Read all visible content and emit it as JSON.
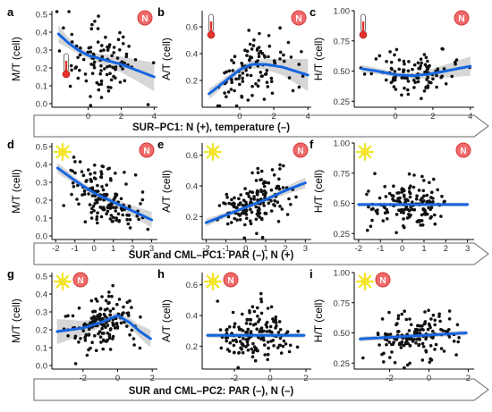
{
  "chart_data": {
    "type": "scatter",
    "rows": [
      {
        "banner": "SUR–PC1: N (+), temperature (–)",
        "panels": [
          {
            "letter": "a",
            "ylabel": "M/T (cell)",
            "icons": [
              "N-badge",
              "thermometer"
            ],
            "xlim": [
              -2.2,
              4.2
            ],
            "ylim": [
              -0.02,
              0.52
            ],
            "xticks": [
              {
                "v": 0,
                "t": "0"
              },
              {
                "v": 2,
                "t": "2"
              },
              {
                "v": 4,
                "t": "4"
              }
            ],
            "yticks": [
              {
                "v": 0.0,
                "t": "0.0"
              },
              {
                "v": 0.1,
                "t": "0.1"
              },
              {
                "v": 0.2,
                "t": "0.2"
              },
              {
                "v": 0.3,
                "t": "0.3"
              },
              {
                "v": 0.4,
                "t": "0.4"
              },
              {
                "v": 0.5,
                "t": "0.5"
              }
            ],
            "fit": {
              "x": [
                -1.8,
                -1.2,
                -0.6,
                0,
                1,
                2,
                3,
                4
              ],
              "y": [
                0.39,
                0.34,
                0.3,
                0.27,
                0.245,
                0.22,
                0.185,
                0.15
              ],
              "band": [
                0.05,
                0.03,
                0.02,
                0.02,
                0.03,
                0.045,
                0.06,
                0.08
              ]
            },
            "npts": 105,
            "seed": 11,
            "dist": {
              "kind": "decay",
              "xr": [
                -1.9,
                4.0
              ],
              "sd": 0.11
            }
          },
          {
            "letter": "b",
            "ylabel": "A/T (cell)",
            "icons": [
              "N-badge",
              "thermometer"
            ],
            "xlim": [
              -2.2,
              4.2
            ],
            "ylim": [
              0.0,
              0.72
            ],
            "xticks": [
              {
                "v": 0,
                "t": "0"
              },
              {
                "v": 2,
                "t": "2"
              },
              {
                "v": 4,
                "t": "4"
              }
            ],
            "yticks": [
              {
                "v": 0.2,
                "t": "0.2"
              },
              {
                "v": 0.4,
                "t": "0.4"
              },
              {
                "v": 0.6,
                "t": "0.6"
              }
            ],
            "fit": {
              "x": [
                -1.8,
                -1,
                0,
                0.7,
                1.5,
                2.5,
                4
              ],
              "y": [
                0.1,
                0.18,
                0.28,
                0.32,
                0.32,
                0.3,
                0.24
              ],
              "band": [
                0.04,
                0.03,
                0.025,
                0.03,
                0.04,
                0.06,
                0.12
              ]
            },
            "npts": 105,
            "seed": 23,
            "dist": {
              "kind": "rise",
              "xr": [
                -1.9,
                4.0
              ],
              "sd": 0.12
            }
          },
          {
            "letter": "c",
            "ylabel": "H/T (cell)",
            "icons": [
              "N-badge",
              "thermometer"
            ],
            "xlim": [
              -2.2,
              4.2
            ],
            "ylim": [
              0.2,
              1.0
            ],
            "xticks": [
              {
                "v": 0,
                "t": "0"
              },
              {
                "v": 2,
                "t": "2"
              },
              {
                "v": 4,
                "t": "4"
              }
            ],
            "yticks": [
              {
                "v": 0.25,
                "t": "0.25"
              },
              {
                "v": 0.5,
                "t": "0.50"
              },
              {
                "v": 0.75,
                "t": "0.75"
              },
              {
                "v": 1.0,
                "t": "1.00"
              }
            ],
            "fit": {
              "x": [
                -1.8,
                -1,
                0,
                1,
                2,
                3,
                4
              ],
              "y": [
                0.52,
                0.5,
                0.47,
                0.46,
                0.48,
                0.51,
                0.54
              ],
              "band": [
                0.03,
                0.025,
                0.02,
                0.025,
                0.04,
                0.06,
                0.08
              ]
            },
            "npts": 105,
            "seed": 37,
            "dist": {
              "kind": "flat",
              "xr": [
                -1.9,
                4.0
              ],
              "sd": 0.1
            }
          }
        ]
      },
      {
        "banner": "SUR and CML–PC1: PAR (–), N (+)",
        "panels": [
          {
            "letter": "d",
            "ylabel": "M/T (cell)",
            "icons": [
              "sun",
              "N-badge"
            ],
            "xlim": [
              -2.2,
              3.3
            ],
            "ylim": [
              -0.02,
              0.52
            ],
            "xticks": [
              {
                "v": -2,
                "t": "-2"
              },
              {
                "v": -1,
                "t": "-1"
              },
              {
                "v": 0,
                "t": "0"
              },
              {
                "v": 1,
                "t": "1"
              },
              {
                "v": 2,
                "t": "2"
              },
              {
                "v": 3,
                "t": "3"
              }
            ],
            "yticks": [
              {
                "v": 0.0,
                "t": "0.0"
              },
              {
                "v": 0.1,
                "t": "0.1"
              },
              {
                "v": 0.2,
                "t": "0.2"
              },
              {
                "v": 0.3,
                "t": "0.3"
              },
              {
                "v": 0.4,
                "t": "0.4"
              },
              {
                "v": 0.5,
                "t": "0.5"
              }
            ],
            "fit": {
              "x": [
                -1.9,
                -1,
                0,
                1,
                2,
                3
              ],
              "y": [
                0.38,
                0.31,
                0.24,
                0.19,
                0.14,
                0.09
              ],
              "band": [
                0.03,
                0.02,
                0.015,
                0.02,
                0.03,
                0.045
              ]
            },
            "npts": 150,
            "seed": 41,
            "dist": {
              "kind": "linear",
              "xr": [
                -1.95,
                3.0
              ],
              "sd": 0.08
            }
          },
          {
            "letter": "e",
            "ylabel": "A/T (cell)",
            "icons": [
              "sun",
              "N-badge"
            ],
            "xlim": [
              -2.2,
              3.3
            ],
            "ylim": [
              0.05,
              0.68
            ],
            "xticks": [
              {
                "v": -2,
                "t": "-2"
              },
              {
                "v": -1,
                "t": "-1"
              },
              {
                "v": 0,
                "t": "0"
              },
              {
                "v": 1,
                "t": "1"
              },
              {
                "v": 2,
                "t": "2"
              },
              {
                "v": 3,
                "t": "3"
              }
            ],
            "yticks": [
              {
                "v": 0.2,
                "t": "0.2"
              },
              {
                "v": 0.4,
                "t": "0.4"
              },
              {
                "v": 0.6,
                "t": "0.6"
              }
            ],
            "fit": {
              "x": [
                -2,
                -1,
                0,
                1,
                2,
                3
              ],
              "y": [
                0.16,
                0.21,
                0.26,
                0.31,
                0.37,
                0.42
              ],
              "band": [
                0.025,
                0.018,
                0.015,
                0.018,
                0.025,
                0.035
              ]
            },
            "npts": 150,
            "seed": 53,
            "dist": {
              "kind": "linear",
              "xr": [
                -2.0,
                3.0
              ],
              "sd": 0.09
            }
          },
          {
            "letter": "f",
            "ylabel": "H/T (cell)",
            "icons": [
              "sun",
              "N-badge"
            ],
            "xlim": [
              -2.2,
              3.3
            ],
            "ylim": [
              0.2,
              1.0
            ],
            "xticks": [
              {
                "v": -2,
                "t": "-2"
              },
              {
                "v": -1,
                "t": "-1"
              },
              {
                "v": 0,
                "t": "0"
              },
              {
                "v": 1,
                "t": "1"
              },
              {
                "v": 2,
                "t": "2"
              },
              {
                "v": 3,
                "t": "3"
              }
            ],
            "yticks": [
              {
                "v": 0.25,
                "t": "0.25"
              },
              {
                "v": 0.5,
                "t": "0.50"
              },
              {
                "v": 0.75,
                "t": "0.75"
              },
              {
                "v": 1.0,
                "t": "1.00"
              }
            ],
            "fit": {
              "x": [
                -2,
                3
              ],
              "y": [
                0.49,
                0.49
              ],
              "band": [
                0.015,
                0.015
              ]
            },
            "npts": 150,
            "seed": 67,
            "dist": {
              "kind": "flat",
              "xr": [
                -2.0,
                2.7
              ],
              "sd": 0.09
            }
          }
        ]
      },
      {
        "banner": "SUR and CML–PC2: PAR (–), N (–)",
        "panels": [
          {
            "letter": "g",
            "ylabel": "M/T (cell)",
            "icons": [
              "sun",
              "N-badge"
            ],
            "xlim": [
              -3.8,
              2.3
            ],
            "ylim": [
              -0.02,
              0.52
            ],
            "xticks": [
              {
                "v": -2,
                "t": "-2"
              },
              {
                "v": 0,
                "t": "0"
              },
              {
                "v": 2,
                "t": "2"
              }
            ],
            "yticks": [
              {
                "v": 0.0,
                "t": "0.0"
              },
              {
                "v": 0.1,
                "t": "0.1"
              },
              {
                "v": 0.2,
                "t": "0.2"
              },
              {
                "v": 0.3,
                "t": "0.3"
              },
              {
                "v": 0.4,
                "t": "0.4"
              },
              {
                "v": 0.5,
                "t": "0.5"
              }
            ],
            "fit": {
              "x": [
                -3.5,
                -2,
                -1,
                0,
                0.7,
                1.3,
                1.9
              ],
              "y": [
                0.19,
                0.21,
                0.24,
                0.28,
                0.24,
                0.19,
                0.15
              ],
              "band": [
                0.07,
                0.04,
                0.025,
                0.02,
                0.025,
                0.035,
                0.05
              ]
            },
            "npts": 150,
            "seed": 79,
            "dist": {
              "kind": "bump",
              "xr": [
                -3.5,
                1.9
              ],
              "sd": 0.08
            }
          },
          {
            "letter": "h",
            "ylabel": "A/T (cell)",
            "icons": [
              "sun",
              "N-badge"
            ],
            "xlim": [
              -3.8,
              2.3
            ],
            "ylim": [
              0.05,
              0.68
            ],
            "xticks": [
              {
                "v": -2,
                "t": "-2"
              },
              {
                "v": 0,
                "t": "0"
              },
              {
                "v": 2,
                "t": "2"
              }
            ],
            "yticks": [
              {
                "v": 0.2,
                "t": "0.2"
              },
              {
                "v": 0.4,
                "t": "0.4"
              },
              {
                "v": 0.6,
                "t": "0.6"
              }
            ],
            "fit": {
              "x": [
                -3.5,
                1.9
              ],
              "y": [
                0.27,
                0.27
              ],
              "band": [
                0.015,
                0.015
              ]
            },
            "npts": 150,
            "seed": 83,
            "dist": {
              "kind": "flat",
              "xr": [
                -3.4,
                1.9
              ],
              "sd": 0.09
            }
          },
          {
            "letter": "i",
            "ylabel": "H/T (cell)",
            "icons": [
              "sun",
              "N-badge"
            ],
            "xlim": [
              -3.8,
              2.3
            ],
            "ylim": [
              0.2,
              1.0
            ],
            "xticks": [
              {
                "v": -2,
                "t": "-2"
              },
              {
                "v": 0,
                "t": "0"
              },
              {
                "v": 2,
                "t": "2"
              }
            ],
            "yticks": [
              {
                "v": 0.25,
                "t": "0.25"
              },
              {
                "v": 0.5,
                "t": "0.50"
              },
              {
                "v": 0.75,
                "t": "0.75"
              },
              {
                "v": 1.0,
                "t": "1.00"
              }
            ],
            "fit": {
              "x": [
                -3.5,
                1.9
              ],
              "y": [
                0.45,
                0.5
              ],
              "band": [
                0.02,
                0.02
              ]
            },
            "npts": 150,
            "seed": 97,
            "dist": {
              "kind": "linear",
              "xr": [
                -3.4,
                1.9
              ],
              "sd": 0.1
            }
          }
        ]
      }
    ],
    "colors": {
      "points": "#111111",
      "fit": "#1565e0",
      "band": "#c8c8c8",
      "badge": "#f06a6a",
      "badge_ring": "#d33a3a",
      "sun": "#f3e62a",
      "thermo": "#e8312a",
      "arrow_stroke": "#666666"
    },
    "badge_text": "N"
  }
}
